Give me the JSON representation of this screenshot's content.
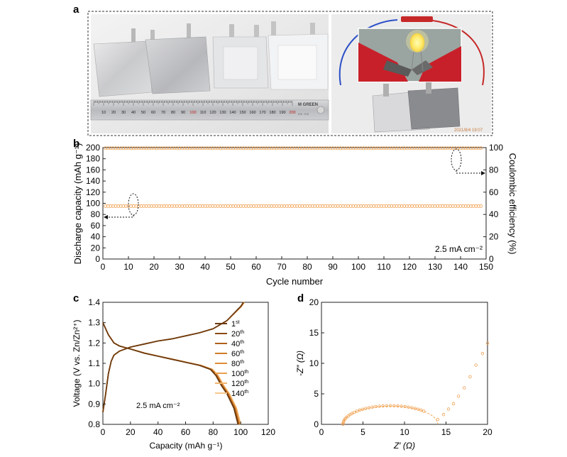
{
  "panels": {
    "a": "a",
    "b": "b",
    "c": "c",
    "d": "d"
  },
  "photo_a_left": {
    "ruler_numbers": [
      "10",
      "20",
      "30",
      "40",
      "50",
      "60",
      "70",
      "80",
      "90",
      "100",
      "110",
      "120",
      "130",
      "140",
      "150",
      "160",
      "170",
      "180",
      "190",
      "200"
    ],
    "ruler_brand": "M GREEN",
    "ruler_small": "0.5 · 0.5"
  },
  "photo_a_right": {
    "timestamp": "2021/8/4 18:07"
  },
  "chart_data": [
    {
      "id": "b",
      "type": "scatter",
      "xlabel": "Cycle number",
      "ylabel_left": "Discharge capacity (mAh g⁻¹)",
      "ylabel_right": "Coulombic efficiency (%)",
      "xlim": [
        0,
        150
      ],
      "ylim_left": [
        0,
        200
      ],
      "ylim_right": [
        0,
        100
      ],
      "x_ticks": [
        0,
        10,
        20,
        30,
        40,
        50,
        60,
        70,
        80,
        90,
        100,
        110,
        120,
        130,
        140,
        150
      ],
      "y_ticks_left": [
        0,
        20,
        40,
        60,
        80,
        100,
        120,
        140,
        160,
        180,
        200
      ],
      "y_ticks_right": [
        0,
        20,
        40,
        60,
        80,
        100
      ],
      "annotation": "2.5 mA cm⁻²",
      "marker_color": "#F0A050",
      "series": [
        {
          "axis": "left",
          "x_start": 1,
          "x_end": 148,
          "value": 95
        },
        {
          "axis": "right",
          "x_start": 1,
          "x_end": 148,
          "value": 99.5
        }
      ]
    },
    {
      "id": "c",
      "type": "line",
      "xlabel": "Capacity (mAh g⁻¹)",
      "ylabel": "Voltage (V vs. Zn/Zn²⁺)",
      "xlim": [
        0,
        120
      ],
      "ylim": [
        0.8,
        1.4
      ],
      "x_ticks": [
        0,
        20,
        40,
        60,
        80,
        100,
        120
      ],
      "y_ticks": [
        0.8,
        0.9,
        1.0,
        1.1,
        1.2,
        1.3,
        1.4
      ],
      "annotation": "2.5 mA cm⁻²",
      "legend_position": "right",
      "series": [
        {
          "base": "1",
          "sup": "st",
          "color": "#6B3A10",
          "shift": 0
        },
        {
          "base": "20",
          "sup": "th",
          "color": "#8A4A12",
          "shift": 0.3
        },
        {
          "base": "40",
          "sup": "th",
          "color": "#B0601A",
          "shift": 0.6
        },
        {
          "base": "60",
          "sup": "th",
          "color": "#D07A25",
          "shift": 0.9
        },
        {
          "base": "80",
          "sup": "th",
          "color": "#E08D35",
          "shift": 1.2
        },
        {
          "base": "100",
          "sup": "th",
          "color": "#EBA050",
          "shift": 1.5
        },
        {
          "base": "120",
          "sup": "th",
          "color": "#F1B46C",
          "shift": 1.8
        },
        {
          "base": "140",
          "sup": "th",
          "color": "#F6C88C",
          "shift": 2.1
        }
      ],
      "charge_curve": [
        [
          0,
          0.86
        ],
        [
          2,
          0.95
        ],
        [
          4,
          1.05
        ],
        [
          6,
          1.11
        ],
        [
          8,
          1.14
        ],
        [
          12,
          1.16
        ],
        [
          20,
          1.18
        ],
        [
          30,
          1.195
        ],
        [
          40,
          1.21
        ],
        [
          50,
          1.22
        ],
        [
          60,
          1.235
        ],
        [
          70,
          1.25
        ],
        [
          80,
          1.27
        ],
        [
          90,
          1.31
        ],
        [
          100,
          1.38
        ],
        [
          102,
          1.4
        ]
      ],
      "discharge_curve": [
        [
          0,
          1.3
        ],
        [
          2,
          1.27
        ],
        [
          4,
          1.24
        ],
        [
          8,
          1.2
        ],
        [
          12,
          1.185
        ],
        [
          20,
          1.17
        ],
        [
          30,
          1.15
        ],
        [
          40,
          1.135
        ],
        [
          50,
          1.12
        ],
        [
          60,
          1.105
        ],
        [
          70,
          1.09
        ],
        [
          78,
          1.07
        ],
        [
          82,
          1.04
        ],
        [
          86,
          0.99
        ],
        [
          90,
          0.95
        ],
        [
          95,
          0.88
        ],
        [
          98,
          0.8
        ]
      ]
    },
    {
      "id": "d",
      "type": "scatter",
      "xlabel": "Z′ (Ω)",
      "ylabel": "-Z″ (Ω)",
      "xlim": [
        0,
        20
      ],
      "ylim": [
        0,
        20
      ],
      "x_ticks": [
        0,
        5,
        10,
        15,
        20
      ],
      "y_ticks": [
        0,
        5,
        10,
        15,
        20
      ],
      "marker_color": "#F0A050",
      "semicircle": {
        "r_start": 2.6,
        "r_end": 14.0,
        "peak": 3.0
      },
      "tail": [
        [
          14.0,
          0.8
        ],
        [
          14.7,
          1.6
        ],
        [
          15.3,
          2.5
        ],
        [
          15.9,
          3.4
        ],
        [
          16.5,
          4.6
        ],
        [
          17.2,
          6.0
        ],
        [
          17.9,
          7.8
        ],
        [
          18.6,
          9.7
        ],
        [
          19.4,
          11.6
        ],
        [
          20.0,
          13.3
        ]
      ]
    }
  ]
}
